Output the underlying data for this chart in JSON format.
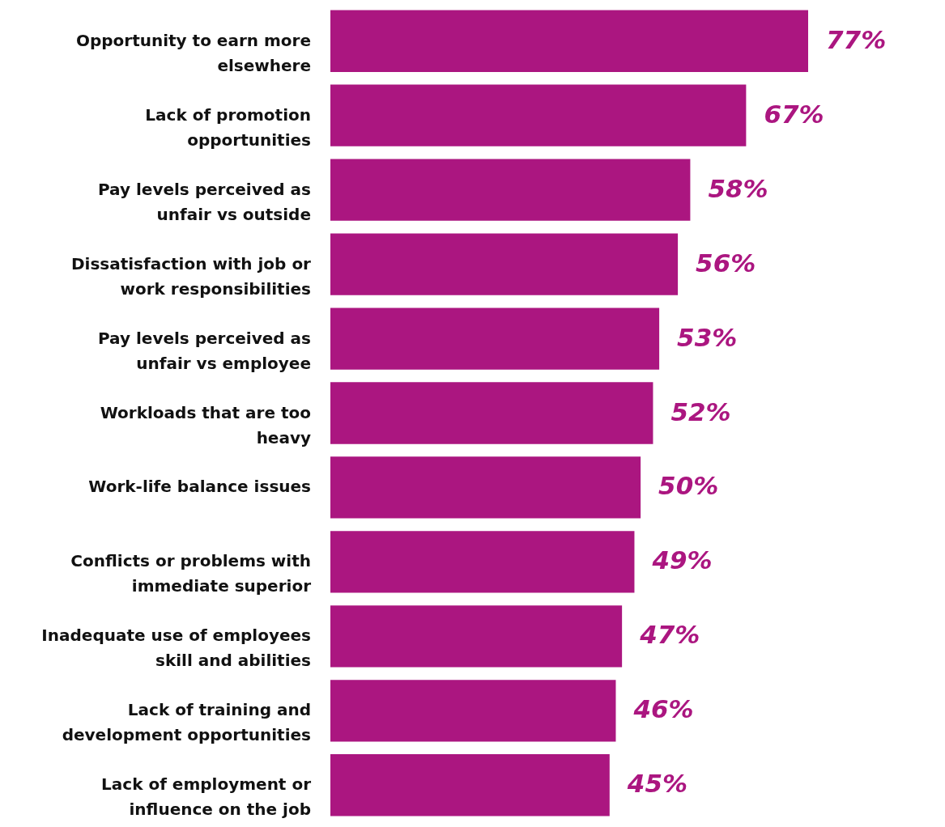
{
  "chart_data": {
    "type": "bar",
    "orientation": "horizontal",
    "tick_labels": "y",
    "categories": [
      "Opportunity to earn more elsewhere",
      "Lack of promotion opportunities",
      "Pay levels perceived as unfair vs outside",
      "Dissatisfaction with job or work responsibilities",
      "Pay levels perceived as unfair vs employee",
      "Workloads that are too heavy",
      "Work-life balance issues",
      "Conflicts or problems with immediate superior",
      "Inadequate use of employees skill and abilities",
      "Lack of training and development opportunities",
      "Lack of employment or influence on the job"
    ],
    "series": [
      {
        "color": "#ab1680",
        "values": [
          77,
          67,
          58,
          56,
          53,
          52,
          50,
          49,
          47,
          46,
          45
        ],
        "value_labels": [
          "77%",
          "67%",
          "58%",
          "56%",
          "53%",
          "52%",
          "50%",
          "49%",
          "47%",
          "46%",
          "45%"
        ]
      }
    ]
  }
}
